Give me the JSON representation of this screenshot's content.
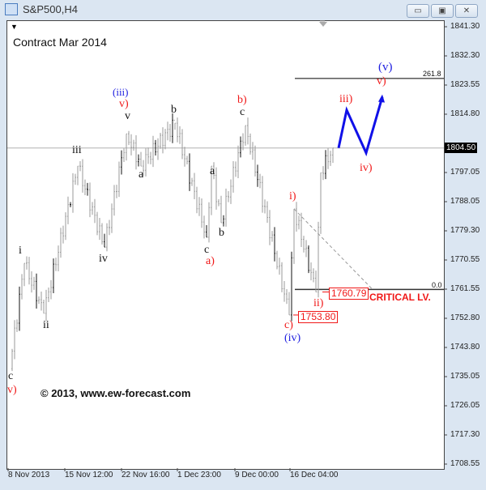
{
  "window": {
    "title": "S&P500,H4",
    "minimize": "▭",
    "maximize": "▣",
    "close": "✕"
  },
  "chart_header": {
    "contract": "Contract Mar 2014"
  },
  "watermark": "© 2013, www.ew-forecast.com",
  "current_price": "1804.50",
  "critical_label": "CRITICAL LV.",
  "price_boxes": {
    "ii_low": "1760.79",
    "c_low": "1753.80"
  },
  "fib": {
    "upper": "261.8",
    "lower": "0.0"
  },
  "chart_data": {
    "type": "bar",
    "title": "S&P500,H4",
    "ylim": [
      1708.55,
      1841.3
    ],
    "y_ticks": [
      "1841.30",
      "1832.30",
      "1823.55",
      "1814.80",
      "1797.05",
      "1788.05",
      "1779.30",
      "1770.55",
      "1761.55",
      "1752.80",
      "1743.80",
      "1735.05",
      "1726.05",
      "1717.30",
      "1708.55"
    ],
    "x_ticks": [
      "8 Nov 2013",
      "15 Nov 12:00",
      "22 Nov 16:00",
      "1 Dec 23:00",
      "9 Dec 00:00",
      "16 Dec 04:00"
    ],
    "pivots": [
      {
        "bar": 0,
        "price": 1737.5
      },
      {
        "bar": 6,
        "price": 1769.5
      },
      {
        "bar": 14,
        "price": 1754.3
      },
      {
        "bar": 28,
        "price": 1799
      },
      {
        "bar": 39,
        "price": 1774.4
      },
      {
        "bar": 48,
        "price": 1808.8
      },
      {
        "bar": 54,
        "price": 1799
      },
      {
        "bar": 68,
        "price": 1812
      },
      {
        "bar": 81,
        "price": 1777.4
      },
      {
        "bar": 83,
        "price": 1799
      },
      {
        "bar": 87,
        "price": 1781.8
      },
      {
        "bar": 97,
        "price": 1811.3
      },
      {
        "bar": 115,
        "price": 1753.8
      },
      {
        "bar": 117,
        "price": 1786
      },
      {
        "bar": 126,
        "price": 1760.79
      },
      {
        "bar": 128,
        "price": 1797
      },
      {
        "bar": 133,
        "price": 1804.5
      }
    ],
    "projection": [
      1804.5,
      1816,
      1803,
      1820
    ],
    "horizontal_lines": {
      "current": 1804.5,
      "fib_261_8": 1825.6,
      "fib_0": 1761.55
    },
    "wave_labels": {
      "c_start": "c",
      "v_start": "v)",
      "i": "i",
      "ii": "ii",
      "iii": "iii",
      "iv": "iv",
      "v": "v",
      "iii_circ": "(iii)",
      "v_red": "v)",
      "a1": "a",
      "b1": "b",
      "c1": "c",
      "a_red": "a)",
      "a2": "a",
      "b2": "b",
      "c2": "c",
      "b_red": "b)",
      "c_red": "c)",
      "iv_circ": "(iv)",
      "i_red": "i)",
      "ii_red": "ii)",
      "iii_red": "iii)",
      "iv_red": "iv)",
      "v_red2": "v)",
      "v_circ": "(v)"
    }
  }
}
